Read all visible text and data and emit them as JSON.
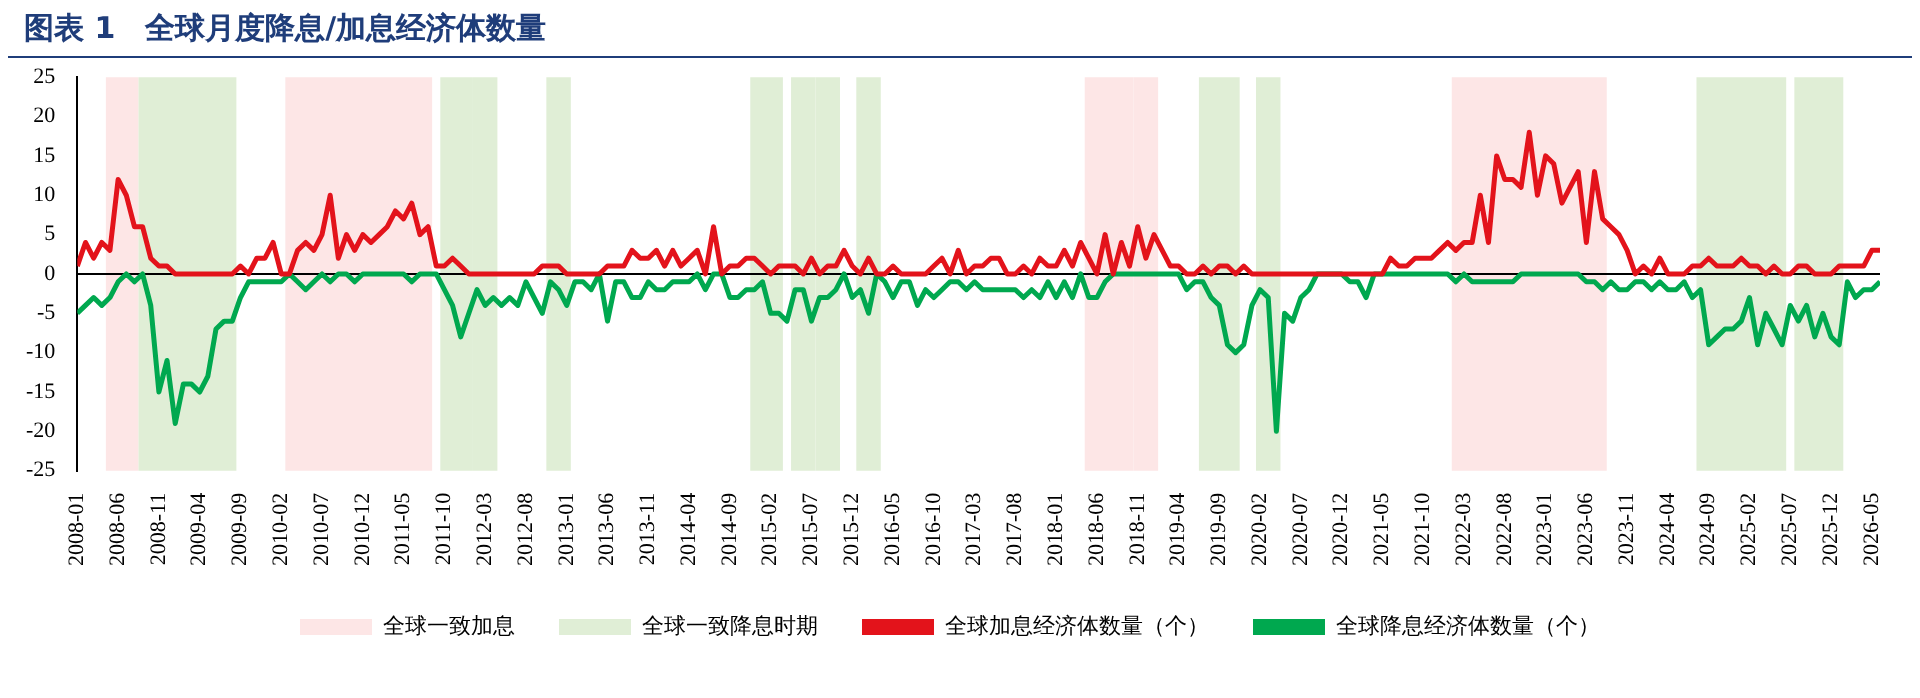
{
  "chart_data": {
    "type": "line",
    "title": "图表 1　全球月度降息/加息经济体数量",
    "x": [
      "2008-01",
      "2008-02",
      "2008-03",
      "2008-04",
      "2008-05",
      "2008-06",
      "2008-07",
      "2008-08",
      "2008-09",
      "2008-10",
      "2008-11",
      "2008-12",
      "2009-01",
      "2009-02",
      "2009-03",
      "2009-04",
      "2009-05",
      "2009-06",
      "2009-07",
      "2009-08",
      "2009-09",
      "2009-10",
      "2009-11",
      "2009-12",
      "2010-01",
      "2010-02",
      "2010-03",
      "2010-04",
      "2010-05",
      "2010-06",
      "2010-07",
      "2010-08",
      "2010-09",
      "2010-10",
      "2010-11",
      "2010-12",
      "2011-01",
      "2011-02",
      "2011-03",
      "2011-04",
      "2011-05",
      "2011-06",
      "2011-07",
      "2011-08",
      "2011-09",
      "2011-10",
      "2011-11",
      "2011-12",
      "2012-01",
      "2012-02",
      "2012-03",
      "2012-04",
      "2012-05",
      "2012-06",
      "2012-07",
      "2012-08",
      "2012-09",
      "2012-10",
      "2012-11",
      "2012-12",
      "2013-01",
      "2013-02",
      "2013-03",
      "2013-04",
      "2013-05",
      "2013-06",
      "2013-07",
      "2013-08",
      "2013-09",
      "2013-10",
      "2013-11",
      "2013-12",
      "2014-01",
      "2014-02",
      "2014-03",
      "2014-04",
      "2014-05",
      "2014-06",
      "2014-07",
      "2014-08",
      "2014-09",
      "2014-10",
      "2014-11",
      "2014-12",
      "2015-01",
      "2015-02",
      "2015-03",
      "2015-04",
      "2015-05",
      "2015-06",
      "2015-07",
      "2015-08",
      "2015-09",
      "2015-10",
      "2015-11",
      "2015-12",
      "2016-01",
      "2016-02",
      "2016-03",
      "2016-04",
      "2016-05",
      "2016-06",
      "2016-07",
      "2016-08",
      "2016-09",
      "2016-10",
      "2016-11",
      "2016-12",
      "2017-01",
      "2017-02",
      "2017-03",
      "2017-04",
      "2017-05",
      "2017-06",
      "2017-07",
      "2017-08",
      "2017-09",
      "2017-10",
      "2017-11",
      "2017-12",
      "2018-01",
      "2018-02",
      "2018-03",
      "2018-04",
      "2018-05",
      "2018-06",
      "2018-07",
      "2018-08",
      "2018-09",
      "2018-10",
      "2018-11",
      "2018-12",
      "2019-01",
      "2019-02",
      "2019-03",
      "2019-04",
      "2019-05",
      "2019-06",
      "2019-07",
      "2019-08",
      "2019-09",
      "2019-10",
      "2019-11",
      "2019-12",
      "2020-01",
      "2020-02",
      "2020-03",
      "2020-04",
      "2020-05",
      "2020-06",
      "2020-07",
      "2020-08",
      "2020-09",
      "2020-10",
      "2020-11",
      "2020-12",
      "2021-01",
      "2021-02",
      "2021-03",
      "2021-04",
      "2021-05",
      "2021-06",
      "2021-07",
      "2021-08",
      "2021-09",
      "2021-10",
      "2021-11",
      "2021-12",
      "2022-01",
      "2022-02",
      "2022-03",
      "2022-04",
      "2022-05",
      "2022-06",
      "2022-07",
      "2022-08",
      "2022-09",
      "2022-10",
      "2022-11",
      "2022-12",
      "2023-01",
      "2023-02",
      "2023-03",
      "2023-04",
      "2023-05",
      "2023-06",
      "2023-07",
      "2023-08",
      "2023-09",
      "2023-10",
      "2023-11",
      "2023-12",
      "2024-01",
      "2024-02",
      "2024-03",
      "2024-04",
      "2024-05",
      "2024-06",
      "2024-07",
      "2024-08",
      "2024-09",
      "2024-10",
      "2024-11",
      "2024-12",
      "2025-01",
      "2025-02",
      "2025-03",
      "2025-04",
      "2025-05",
      "2025-06",
      "2025-07",
      "2025-08",
      "2025-09",
      "2025-10",
      "2025-11",
      "2025-12",
      "2026-01",
      "2026-02",
      "2026-03",
      "2026-04",
      "2026-05",
      "2026-06"
    ],
    "series": [
      {
        "name": "全球加息经济体数量（个）",
        "color": "#e3131b",
        "values": [
          1,
          4,
          2,
          4,
          3,
          12,
          10,
          6,
          6,
          2,
          1,
          1,
          0,
          0,
          0,
          0,
          0,
          0,
          0,
          0,
          1,
          0,
          2,
          2,
          4,
          0,
          0,
          3,
          4,
          3,
          5,
          10,
          2,
          5,
          3,
          5,
          4,
          5,
          6,
          8,
          7,
          9,
          5,
          6,
          1,
          1,
          2,
          1,
          0,
          0,
          0,
          0,
          0,
          0,
          0,
          0,
          0,
          1,
          1,
          1,
          0,
          0,
          0,
          0,
          0,
          1,
          1,
          1,
          3,
          2,
          2,
          3,
          1,
          3,
          1,
          2,
          3,
          0,
          6,
          0,
          1,
          1,
          2,
          2,
          1,
          0,
          1,
          1,
          1,
          0,
          2,
          0,
          1,
          1,
          3,
          1,
          0,
          2,
          0,
          0,
          1,
          0,
          0,
          0,
          0,
          1,
          2,
          0,
          3,
          0,
          1,
          1,
          2,
          2,
          0,
          0,
          1,
          0,
          2,
          1,
          1,
          3,
          1,
          4,
          2,
          0,
          5,
          0,
          4,
          1,
          6,
          2,
          5,
          3,
          1,
          1,
          0,
          0,
          1,
          0,
          1,
          1,
          0,
          1,
          0,
          0,
          0,
          0,
          0,
          0,
          0,
          0,
          0,
          0,
          0,
          0,
          0,
          0,
          0,
          0,
          0,
          2,
          1,
          1,
          2,
          2,
          2,
          3,
          4,
          3,
          4,
          4,
          10,
          4,
          15,
          12,
          12,
          11,
          18,
          10,
          15,
          14,
          9,
          11,
          13,
          4,
          13,
          7,
          6,
          5,
          3,
          0,
          1,
          0,
          2,
          0,
          0,
          0,
          1,
          1,
          2,
          1,
          1,
          1,
          2,
          1,
          1,
          0,
          1,
          0,
          0,
          1,
          1,
          0,
          0,
          0,
          1,
          1,
          1,
          1,
          3,
          3
        ]
      },
      {
        "name": "全球降息经济体数量（个）",
        "color": "#00a84f",
        "values": [
          -5,
          -4,
          -3,
          -4,
          -3,
          -1,
          0,
          -1,
          0,
          -4,
          -15,
          -11,
          -19,
          -14,
          -14,
          -15,
          -13,
          -7,
          -6,
          -6,
          -3,
          -1,
          -1,
          -1,
          -1,
          -1,
          0,
          -1,
          -2,
          -1,
          0,
          -1,
          0,
          0,
          -1,
          0,
          0,
          0,
          0,
          0,
          0,
          -1,
          0,
          0,
          0,
          -2,
          -4,
          -8,
          -5,
          -2,
          -4,
          -3,
          -4,
          -3,
          -4,
          -1,
          -3,
          -5,
          -1,
          -2,
          -4,
          -1,
          -1,
          -2,
          0,
          -6,
          -1,
          -1,
          -3,
          -3,
          -1,
          -2,
          -2,
          -1,
          -1,
          -1,
          0,
          -2,
          0,
          0,
          -3,
          -3,
          -2,
          -2,
          -1,
          -5,
          -5,
          -6,
          -2,
          -2,
          -6,
          -3,
          -3,
          -2,
          0,
          -3,
          -2,
          -5,
          0,
          -1,
          -3,
          -1,
          -1,
          -4,
          -2,
          -3,
          -2,
          -1,
          -1,
          -2,
          -1,
          -2,
          -2,
          -2,
          -2,
          -2,
          -3,
          -2,
          -3,
          -1,
          -3,
          -1,
          -3,
          0,
          -3,
          -3,
          -1,
          0,
          0,
          0,
          0,
          0,
          0,
          0,
          0,
          0,
          -2,
          -1,
          -1,
          -3,
          -4,
          -9,
          -10,
          -9,
          -4,
          -2,
          -3,
          -20,
          -5,
          -6,
          -3,
          -2,
          0,
          0,
          0,
          0,
          -1,
          -1,
          -3,
          0,
          0,
          0,
          0,
          0,
          0,
          0,
          0,
          0,
          0,
          -1,
          0,
          -1,
          -1,
          -1,
          -1,
          -1,
          -1,
          0,
          0,
          0,
          0,
          0,
          0,
          0,
          0,
          -1,
          -1,
          -2,
          -1,
          -2,
          -2,
          -1,
          -1,
          -2,
          -1,
          -2,
          -2,
          -1,
          -3,
          -2,
          -9,
          -8,
          -7,
          -7,
          -6,
          -3,
          -9,
          -5,
          -7,
          -9,
          -4,
          -6,
          -4,
          -8,
          -5,
          -8,
          -9,
          -1,
          -3,
          -2,
          -2,
          -1
        ]
      }
    ],
    "bands": [
      {
        "axis": "x",
        "from": "2008-05",
        "to": "2008-08",
        "color": "#fde6e6",
        "label": "全球一致加息"
      },
      {
        "axis": "x",
        "from": "2008-09",
        "to": "2009-08",
        "color": "#e0eed6",
        "label": "全球一致降息时期"
      },
      {
        "axis": "x",
        "from": "2010-03",
        "to": "2011-08",
        "color": "#fde6e6"
      },
      {
        "axis": "x",
        "from": "2011-10",
        "to": "2012-01",
        "color": "#e0eed6"
      },
      {
        "axis": "x",
        "from": "2012-02",
        "to": "2012-04",
        "color": "#e0eed6"
      },
      {
        "axis": "x",
        "from": "2012-11",
        "to": "2013-01",
        "color": "#e0eed6"
      },
      {
        "axis": "x",
        "from": "2014-12",
        "to": "2015-03",
        "color": "#e0eed6"
      },
      {
        "axis": "x",
        "from": "2015-05",
        "to": "2015-07",
        "color": "#e0eed6"
      },
      {
        "axis": "x",
        "from": "2015-08",
        "to": "2015-10",
        "color": "#e0eed6"
      },
      {
        "axis": "x",
        "from": "2016-01",
        "to": "2016-03",
        "color": "#e0eed6"
      },
      {
        "axis": "x",
        "from": "2018-05",
        "to": "2018-10",
        "color": "#fde6e6"
      },
      {
        "axis": "x",
        "from": "2018-11",
        "to": "2019-01",
        "color": "#fde6e6"
      },
      {
        "axis": "x",
        "from": "2019-07",
        "to": "2019-11",
        "color": "#e0eed6"
      },
      {
        "axis": "x",
        "from": "2020-02",
        "to": "2020-04",
        "color": "#e0eed6"
      },
      {
        "axis": "x",
        "from": "2022-02",
        "to": "2023-08",
        "color": "#fde6e6"
      },
      {
        "axis": "x",
        "from": "2024-08",
        "to": "2025-06",
        "color": "#e0eed6"
      },
      {
        "axis": "x",
        "from": "2025-08",
        "to": "2026-01",
        "color": "#e0eed6"
      }
    ],
    "xlim": [
      "2008-01",
      "2026-06"
    ],
    "xticks": [
      "2008-01",
      "2008-06",
      "2008-11",
      "2009-04",
      "2009-09",
      "2010-02",
      "2010-07",
      "2010-12",
      "2011-05",
      "2011-10",
      "2012-03",
      "2012-08",
      "2013-01",
      "2013-06",
      "2013-11",
      "2014-04",
      "2014-09",
      "2015-02",
      "2015-07",
      "2015-12",
      "2016-05",
      "2016-10",
      "2017-03",
      "2017-08",
      "2018-01",
      "2018-06",
      "2018-11",
      "2019-04",
      "2019-09",
      "2020-02",
      "2020-07",
      "2020-12",
      "2021-05",
      "2021-10",
      "2022-03",
      "2022-08",
      "2023-01",
      "2023-06",
      "2023-11",
      "2024-04",
      "2024-09",
      "2025-02",
      "2025-07",
      "2025-12",
      "2026-05"
    ],
    "ylim": [
      -25,
      25
    ],
    "yticks": [
      -25,
      -20,
      -15,
      -10,
      -5,
      0,
      5,
      10,
      15,
      20,
      25
    ],
    "ref_lines": [
      {
        "axis": "y",
        "value": 0,
        "color": "#000000"
      }
    ],
    "grid": false,
    "legend": "bottom",
    "marker": "none",
    "line_style": "solid"
  }
}
